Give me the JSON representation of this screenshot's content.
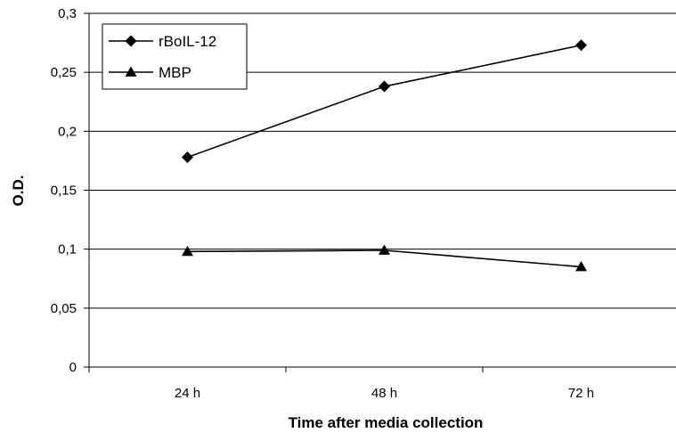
{
  "chart_data": {
    "type": "line",
    "title": "",
    "xlabel": "Time after media collection",
    "ylabel": "O.D.",
    "categories": [
      "24 h",
      "48 h",
      "72 h"
    ],
    "ylim": [
      0,
      0.3
    ],
    "yticks": [
      0,
      0.05,
      0.1,
      0.15,
      0.2,
      0.25,
      0.3
    ],
    "ytick_labels": [
      "0",
      "0,05",
      "0,1",
      "0,15",
      "0,2",
      "0,25",
      "0,3"
    ],
    "grid": "horizontal",
    "legend_position": "top-left",
    "series": [
      {
        "name": "rBoIL-12",
        "marker": "diamond",
        "color": "#000000",
        "values": [
          0.178,
          0.238,
          0.273
        ]
      },
      {
        "name": "MBP",
        "marker": "triangle",
        "color": "#000000",
        "values": [
          0.098,
          0.099,
          0.085
        ]
      }
    ]
  }
}
